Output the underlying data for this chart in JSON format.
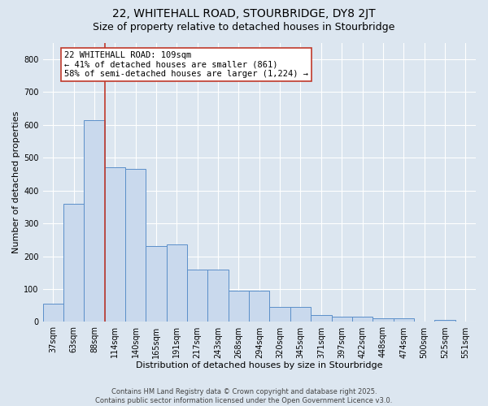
{
  "title1": "22, WHITEHALL ROAD, STOURBRIDGE, DY8 2JT",
  "title2": "Size of property relative to detached houses in Stourbridge",
  "xlabel": "Distribution of detached houses by size in Stourbridge",
  "ylabel": "Number of detached properties",
  "categories": [
    "37sqm",
    "63sqm",
    "88sqm",
    "114sqm",
    "140sqm",
    "165sqm",
    "191sqm",
    "217sqm",
    "243sqm",
    "268sqm",
    "294sqm",
    "320sqm",
    "345sqm",
    "371sqm",
    "397sqm",
    "422sqm",
    "448sqm",
    "474sqm",
    "500sqm",
    "525sqm",
    "551sqm"
  ],
  "values": [
    55,
    360,
    615,
    470,
    465,
    230,
    235,
    160,
    160,
    95,
    95,
    45,
    45,
    20,
    15,
    15,
    10,
    10,
    0,
    7,
    0
  ],
  "bar_color": "#c9d9ed",
  "bar_edge_color": "#5b8fc9",
  "vline_x_index": 2,
  "vline_color": "#c0392b",
  "annotation_text": "22 WHITEHALL ROAD: 109sqm\n← 41% of detached houses are smaller (861)\n58% of semi-detached houses are larger (1,224) →",
  "annotation_box_facecolor": "white",
  "annotation_box_edgecolor": "#c0392b",
  "ylim": [
    0,
    850
  ],
  "yticks": [
    0,
    100,
    200,
    300,
    400,
    500,
    600,
    700,
    800
  ],
  "background_color": "#dce6f0",
  "plot_bg_color": "#dce6f0",
  "footnote": "Contains HM Land Registry data © Crown copyright and database right 2025.\nContains public sector information licensed under the Open Government Licence v3.0.",
  "title1_fontsize": 10,
  "title2_fontsize": 9,
  "tick_fontsize": 7,
  "ylabel_fontsize": 8,
  "xlabel_fontsize": 8,
  "annotation_fontsize": 7.5
}
